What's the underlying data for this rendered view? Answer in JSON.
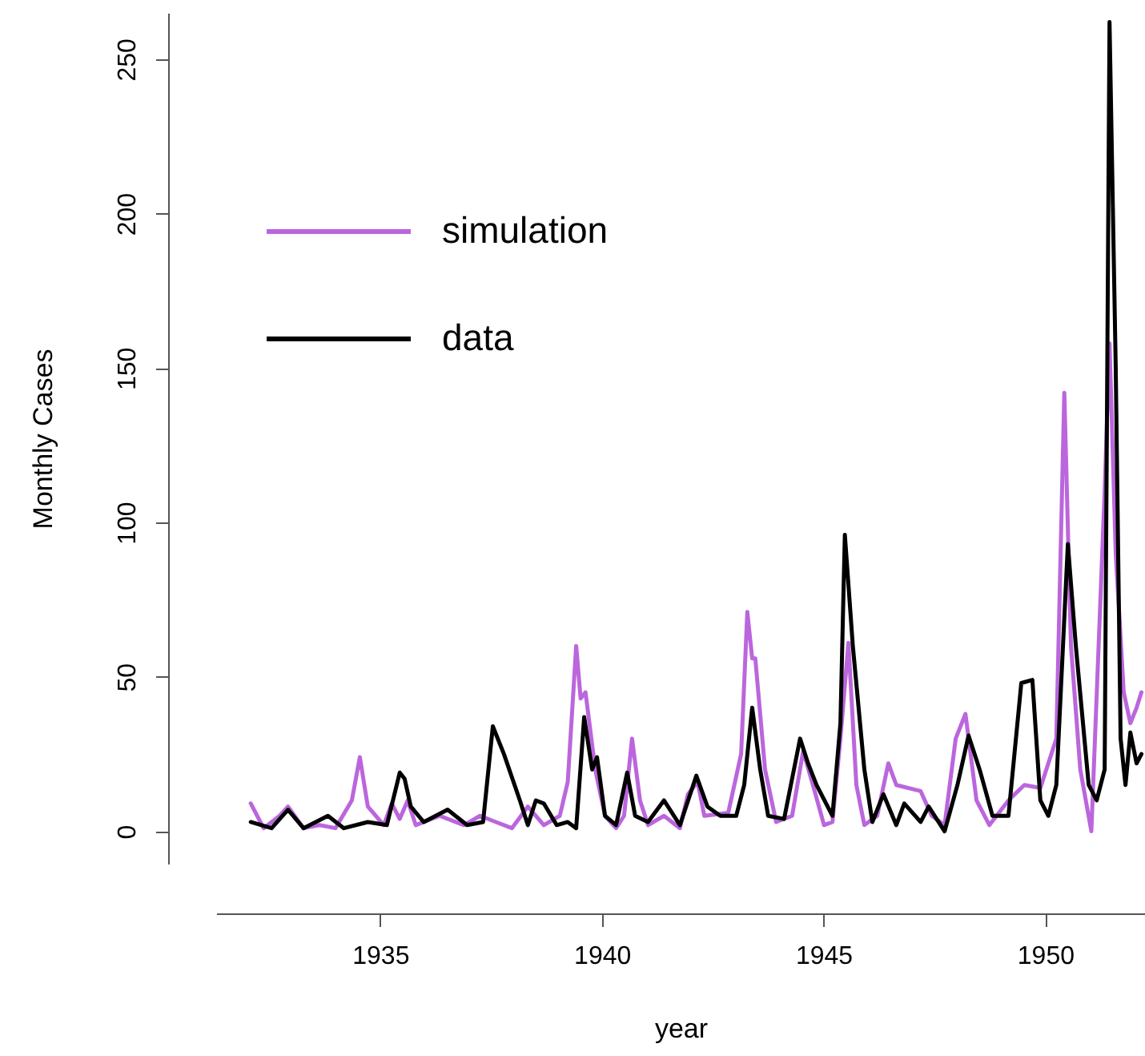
{
  "chart_data": {
    "type": "line",
    "xlabel": "year",
    "ylabel": "Monthly Cases",
    "xlim": [
      1931.3,
      1952.25
    ],
    "xticks": [
      1935,
      1940,
      1945,
      1950
    ],
    "ylim": [
      -10.5,
      265
    ],
    "yticks": [
      0,
      50,
      100,
      150,
      200,
      250
    ],
    "grid": false,
    "legend": "top left",
    "line_style": "solid",
    "series": [
      {
        "name": "simulation",
        "color": "#bb66dd",
        "x": [
          1932.08,
          1932.37,
          1932.73,
          1932.92,
          1933.27,
          1933.63,
          1933.99,
          1934.36,
          1934.54,
          1934.72,
          1935.08,
          1935.26,
          1935.44,
          1935.62,
          1935.8,
          1936.34,
          1936.89,
          1937.25,
          1937.61,
          1937.97,
          1938.33,
          1938.69,
          1939.05,
          1939.23,
          1939.42,
          1939.52,
          1939.63,
          1939.85,
          1940.07,
          1940.32,
          1940.5,
          1940.68,
          1940.86,
          1941.04,
          1941.4,
          1941.76,
          1941.94,
          1942.16,
          1942.31,
          1942.85,
          1943.14,
          1943.28,
          1943.39,
          1943.46,
          1943.68,
          1943.93,
          1944.29,
          1944.54,
          1944.76,
          1945.01,
          1945.2,
          1945.38,
          1945.56,
          1945.74,
          1945.92,
          1946.21,
          1946.46,
          1946.64,
          1947.19,
          1947.44,
          1947.73,
          1947.98,
          1948.2,
          1948.45,
          1948.74,
          1949.17,
          1949.53,
          1949.89,
          1950.25,
          1950.43,
          1950.58,
          1950.79,
          1951.04,
          1951.34,
          1951.45,
          1951.59,
          1951.77,
          1951.92,
          1952.06,
          1952.17
        ],
        "values": [
          9,
          1,
          5,
          8,
          1,
          2,
          1,
          10,
          24,
          8,
          2,
          9,
          4,
          10,
          2,
          5,
          2,
          5,
          3,
          1,
          8,
          2,
          5,
          16,
          60,
          43,
          45,
          20,
          5,
          1,
          5,
          30,
          10,
          2,
          5,
          1,
          12,
          16,
          5,
          6,
          25,
          71,
          56,
          56,
          20,
          3,
          5,
          26,
          15,
          2,
          3,
          30,
          61,
          15,
          2,
          5,
          22,
          15,
          13,
          5,
          2,
          30,
          38,
          10,
          2,
          10,
          15,
          14,
          30,
          142,
          60,
          20,
          0,
          110,
          158,
          90,
          45,
          35,
          40,
          45
        ]
      },
      {
        "name": "data",
        "color": "#000000",
        "x": [
          1932.08,
          1932.55,
          1932.92,
          1933.27,
          1933.82,
          1934.18,
          1934.72,
          1935.15,
          1935.44,
          1935.55,
          1935.69,
          1935.98,
          1936.52,
          1936.96,
          1937.32,
          1937.54,
          1937.79,
          1938.15,
          1938.33,
          1938.51,
          1938.69,
          1938.98,
          1939.23,
          1939.42,
          1939.6,
          1939.78,
          1939.89,
          1940.07,
          1940.32,
          1940.57,
          1940.75,
          1941.04,
          1941.4,
          1941.76,
          1942.13,
          1942.38,
          1942.67,
          1943.03,
          1943.21,
          1943.39,
          1943.57,
          1943.75,
          1944.11,
          1944.47,
          1944.65,
          1944.84,
          1945.2,
          1945.38,
          1945.48,
          1945.66,
          1945.92,
          1946.1,
          1946.35,
          1946.64,
          1946.82,
          1947.19,
          1947.37,
          1947.73,
          1948.02,
          1948.27,
          1948.52,
          1948.81,
          1949.17,
          1949.46,
          1949.71,
          1949.89,
          1950.07,
          1950.25,
          1950.51,
          1950.69,
          1950.98,
          1951.16,
          1951.34,
          1951.45,
          1951.59,
          1951.7,
          1951.81,
          1951.92,
          1952.06,
          1952.17
        ],
        "values": [
          3,
          1,
          7,
          1,
          5,
          1,
          3,
          2,
          19,
          17,
          8,
          3,
          7,
          2,
          3,
          34,
          25,
          10,
          2,
          10,
          9,
          2,
          3,
          1,
          37,
          20,
          24,
          5,
          2,
          19,
          5,
          3,
          10,
          2,
          18,
          8,
          5,
          5,
          15,
          40,
          20,
          5,
          4,
          30,
          22,
          15,
          5,
          35,
          96,
          60,
          20,
          3,
          12,
          2,
          9,
          3,
          8,
          0,
          15,
          31,
          20,
          5,
          5,
          48,
          49,
          10,
          5,
          15,
          93,
          60,
          15,
          10,
          20,
          262,
          150,
          30,
          15,
          32,
          22,
          25
        ]
      }
    ]
  }
}
